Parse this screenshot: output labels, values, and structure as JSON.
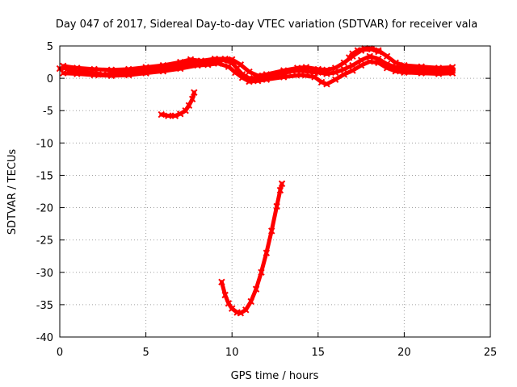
{
  "chart_data": {
    "type": "scatter",
    "title": "Day 047 of 2017, Sidereal Day-to-day VTEC variation (SDTVAR) for receiver vala",
    "xlabel": "GPS time / hours",
    "ylabel": "SDTVAR / TECUs",
    "xlim": [
      0,
      25
    ],
    "ylim": [
      -40,
      5
    ],
    "xticks": [
      0,
      5,
      10,
      15,
      20,
      25
    ],
    "yticks": [
      5,
      0,
      -5,
      -10,
      -15,
      -20,
      -25,
      -30,
      -35,
      -40
    ],
    "grid": true,
    "colors": {
      "series": "#ff0000",
      "grid": "#a0a0a0",
      "axis": "#000000"
    },
    "series": [
      {
        "name": "band-main",
        "points": [
          [
            0.0,
            1.5
          ],
          [
            0.3,
            1.6
          ],
          [
            0.6,
            1.2
          ],
          [
            1.0,
            1.0
          ],
          [
            1.5,
            0.9
          ],
          [
            2.0,
            0.8
          ],
          [
            2.5,
            0.6
          ],
          [
            3.0,
            0.7
          ],
          [
            3.5,
            0.8
          ],
          [
            4.0,
            0.9
          ],
          [
            4.5,
            1.2
          ],
          [
            5.0,
            1.2
          ],
          [
            5.5,
            1.4
          ],
          [
            6.0,
            1.6
          ],
          [
            6.5,
            1.7
          ],
          [
            7.0,
            2.0
          ],
          [
            7.5,
            2.3
          ],
          [
            8.0,
            2.6
          ],
          [
            8.5,
            2.5
          ],
          [
            9.0,
            2.6
          ],
          [
            9.5,
            2.8
          ],
          [
            10.0,
            2.4
          ],
          [
            10.3,
            1.5
          ],
          [
            10.6,
            0.6
          ],
          [
            11.0,
            0.0
          ],
          [
            11.5,
            0.1
          ],
          [
            12.0,
            0.3
          ],
          [
            12.5,
            0.6
          ],
          [
            13.0,
            0.8
          ],
          [
            13.5,
            1.1
          ],
          [
            14.0,
            1.2
          ],
          [
            14.5,
            1.0
          ],
          [
            15.0,
            0.9
          ],
          [
            15.5,
            0.7
          ],
          [
            16.0,
            0.9
          ],
          [
            16.5,
            1.4
          ],
          [
            17.0,
            2.0
          ],
          [
            17.5,
            2.8
          ],
          [
            18.0,
            3.4
          ],
          [
            18.5,
            3.0
          ],
          [
            19.0,
            2.2
          ],
          [
            19.5,
            1.7
          ],
          [
            20.0,
            1.5
          ],
          [
            20.5,
            1.4
          ],
          [
            21.0,
            1.3
          ],
          [
            21.5,
            1.2
          ],
          [
            22.0,
            1.2
          ],
          [
            22.5,
            1.1
          ],
          [
            22.8,
            1.2
          ]
        ]
      },
      {
        "name": "band-upper",
        "points": [
          [
            0.2,
            1.9
          ],
          [
            1.0,
            1.6
          ],
          [
            2.0,
            1.4
          ],
          [
            3.0,
            1.3
          ],
          [
            4.0,
            1.4
          ],
          [
            5.0,
            1.7
          ],
          [
            6.0,
            2.0
          ],
          [
            7.0,
            2.5
          ],
          [
            7.6,
            2.9
          ],
          [
            8.2,
            2.7
          ],
          [
            9.0,
            3.0
          ],
          [
            9.6,
            3.0
          ],
          [
            10.0,
            2.9
          ],
          [
            10.5,
            2.1
          ],
          [
            11.0,
            1.0
          ],
          [
            11.5,
            0.4
          ],
          [
            12.0,
            0.6
          ],
          [
            13.0,
            1.2
          ],
          [
            13.8,
            1.6
          ],
          [
            14.3,
            1.7
          ],
          [
            15.0,
            1.4
          ],
          [
            15.5,
            1.3
          ],
          [
            16.0,
            1.6
          ],
          [
            16.5,
            2.4
          ],
          [
            17.0,
            3.4
          ],
          [
            17.5,
            4.3
          ],
          [
            18.0,
            4.6
          ],
          [
            18.5,
            4.3
          ],
          [
            19.0,
            3.4
          ],
          [
            19.5,
            2.4
          ],
          [
            20.0,
            2.0
          ],
          [
            21.0,
            1.8
          ],
          [
            22.0,
            1.6
          ],
          [
            22.8,
            1.7
          ]
        ]
      },
      {
        "name": "band-lower",
        "points": [
          [
            0.2,
            0.8
          ],
          [
            1.0,
            0.7
          ],
          [
            2.0,
            0.5
          ],
          [
            3.0,
            0.4
          ],
          [
            4.0,
            0.5
          ],
          [
            5.0,
            0.8
          ],
          [
            6.0,
            1.1
          ],
          [
            7.0,
            1.5
          ],
          [
            8.0,
            2.0
          ],
          [
            8.6,
            2.1
          ],
          [
            9.2,
            2.3
          ],
          [
            9.8,
            1.8
          ],
          [
            10.2,
            0.9
          ],
          [
            10.6,
            0.1
          ],
          [
            11.0,
            -0.5
          ],
          [
            11.5,
            -0.4
          ],
          [
            12.0,
            -0.2
          ],
          [
            13.0,
            0.2
          ],
          [
            14.0,
            0.5
          ],
          [
            14.8,
            0.2
          ],
          [
            15.2,
            -0.6
          ],
          [
            15.5,
            -0.9
          ],
          [
            16.0,
            -0.2
          ],
          [
            16.5,
            0.6
          ],
          [
            17.0,
            1.2
          ],
          [
            17.5,
            2.0
          ],
          [
            18.0,
            2.6
          ],
          [
            18.5,
            2.4
          ],
          [
            19.0,
            1.6
          ],
          [
            19.5,
            1.1
          ],
          [
            20.0,
            0.9
          ],
          [
            21.0,
            0.8
          ],
          [
            22.0,
            0.7
          ],
          [
            22.8,
            0.8
          ]
        ]
      },
      {
        "name": "hump-17h",
        "points": [
          [
            16.8,
            3.2
          ],
          [
            17.0,
            3.8
          ],
          [
            17.3,
            4.3
          ],
          [
            17.7,
            4.6
          ],
          [
            18.1,
            4.5
          ],
          [
            18.5,
            4.1
          ]
        ]
      },
      {
        "name": "arc-6h",
        "points": [
          [
            5.9,
            -5.6
          ],
          [
            6.3,
            -5.8
          ],
          [
            6.7,
            -5.8
          ],
          [
            7.0,
            -5.5
          ],
          [
            7.3,
            -5.0
          ],
          [
            7.5,
            -4.2
          ],
          [
            7.7,
            -3.2
          ],
          [
            7.8,
            -2.2
          ]
        ]
      },
      {
        "name": "dip-10h",
        "points": [
          [
            9.4,
            -31.5
          ],
          [
            9.6,
            -33.5
          ],
          [
            9.8,
            -34.8
          ],
          [
            10.0,
            -35.6
          ],
          [
            10.3,
            -36.2
          ],
          [
            10.5,
            -36.3
          ],
          [
            10.8,
            -35.8
          ],
          [
            11.1,
            -34.5
          ],
          [
            11.4,
            -32.6
          ],
          [
            11.7,
            -30.0
          ],
          [
            12.0,
            -27.0
          ],
          [
            12.3,
            -23.6
          ],
          [
            12.6,
            -19.8
          ],
          [
            12.8,
            -17.3
          ],
          [
            12.9,
            -16.3
          ]
        ]
      }
    ]
  }
}
